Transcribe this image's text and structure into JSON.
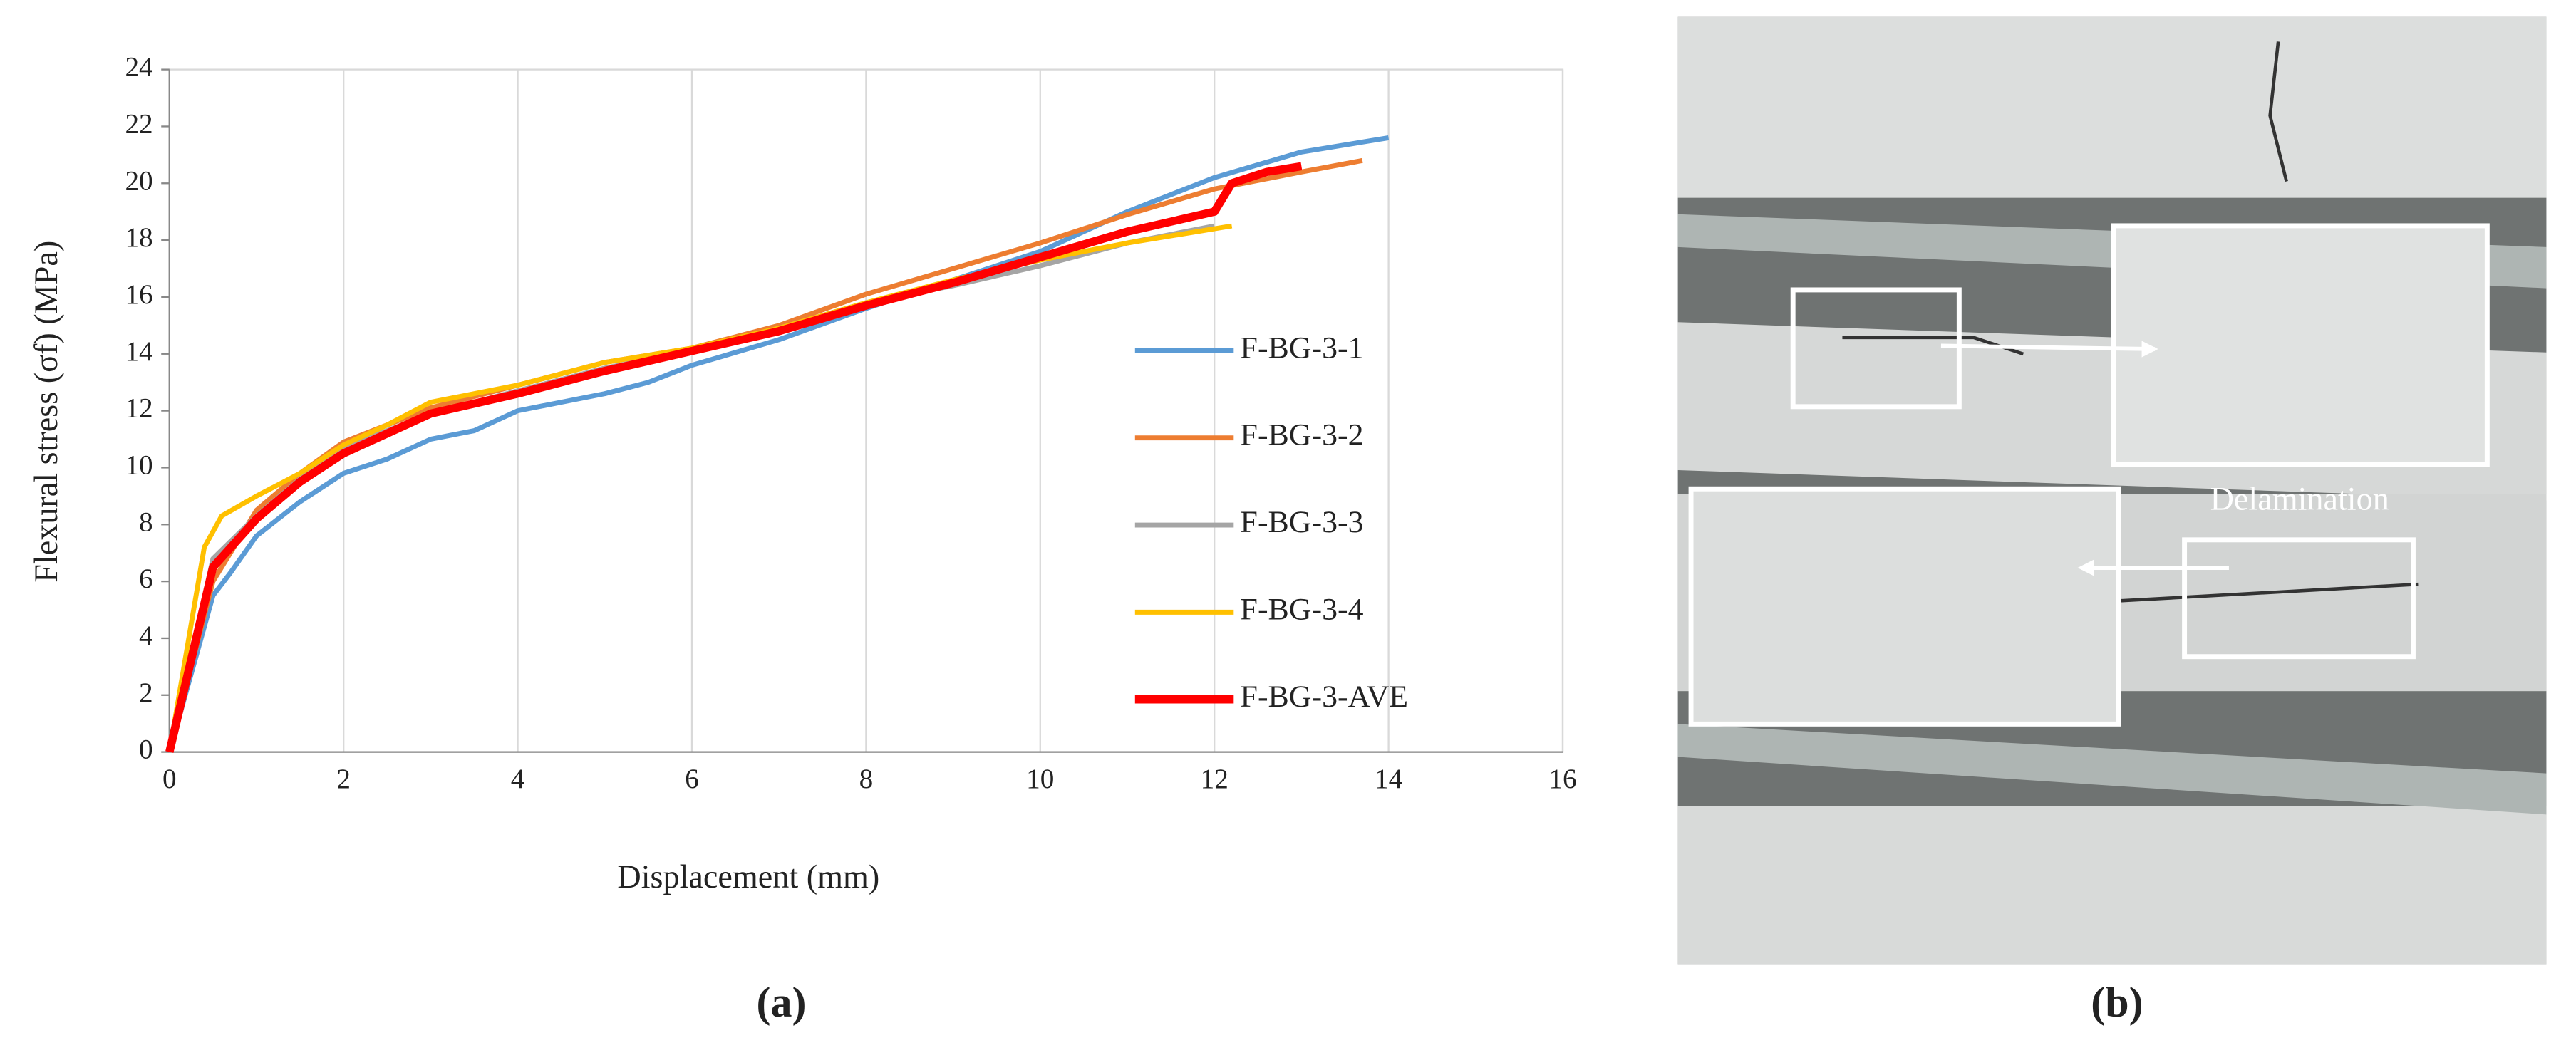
{
  "chart_data": {
    "type": "line",
    "x_label": "Displacement (mm)",
    "y_label": "Flexural stress (σf) (MPa)",
    "xlim": [
      0,
      16
    ],
    "xticks": [
      0,
      2,
      4,
      6,
      8,
      10,
      12,
      14,
      16
    ],
    "ylim": [
      0,
      24
    ],
    "yticks": [
      0,
      2,
      4,
      6,
      8,
      10,
      12,
      14,
      16,
      18,
      20,
      22,
      24
    ],
    "grid": "x",
    "legend": "right",
    "series": [
      {
        "name": "F-BG-3-1",
        "color": "#5b9bd5",
        "width": 3,
        "x": [
          0,
          0.5,
          0.7,
          1,
          1.5,
          2,
          2.5,
          3,
          3.5,
          4,
          4.5,
          5,
          5.5,
          6,
          7,
          8,
          9,
          10,
          11,
          12,
          13,
          14
        ],
        "values": [
          0,
          5.5,
          6.3,
          7.6,
          8.8,
          9.8,
          10.3,
          11.0,
          11.3,
          12.0,
          12.3,
          12.6,
          13.0,
          13.6,
          14.5,
          15.6,
          16.6,
          17.6,
          19.0,
          20.2,
          21.1,
          21.6
        ]
      },
      {
        "name": "F-BG-3-2",
        "color": "#ed7d31",
        "width": 3,
        "x": [
          0,
          0.5,
          1,
          1.5,
          2,
          3,
          4,
          5,
          6,
          7,
          8,
          9,
          10,
          11,
          12,
          13,
          13.7
        ],
        "values": [
          0,
          6,
          8.5,
          9.8,
          10.9,
          12.1,
          12.9,
          13.7,
          14.2,
          15.0,
          16.1,
          17.0,
          17.9,
          18.9,
          19.8,
          20.4,
          20.8
        ]
      },
      {
        "name": "F-BG-3-3",
        "color": "#a5a5a5",
        "width": 3,
        "x": [
          0,
          0.5,
          1,
          1.5,
          2,
          3,
          4,
          5,
          6,
          7,
          8,
          9,
          10,
          11,
          12
        ],
        "values": [
          0,
          6.8,
          8.3,
          9.6,
          10.7,
          11.9,
          12.7,
          13.5,
          14.1,
          14.9,
          15.8,
          16.4,
          17.1,
          17.9,
          18.5
        ]
      },
      {
        "name": "F-BG-3-4",
        "color": "#ffc000",
        "width": 3,
        "x": [
          0,
          0.4,
          0.6,
          1,
          1.5,
          2,
          2.5,
          3,
          4,
          5,
          6,
          7,
          8,
          9,
          10,
          11,
          12.2
        ],
        "values": [
          0,
          7.2,
          8.3,
          9.0,
          9.8,
          10.8,
          11.5,
          12.3,
          12.9,
          13.7,
          14.2,
          14.9,
          15.8,
          16.6,
          17.3,
          17.9,
          18.5
        ]
      },
      {
        "name": "F-BG-3-AVE",
        "color": "#ff0000",
        "width": 5,
        "x": [
          0,
          0.5,
          1,
          1.5,
          2,
          3,
          4,
          5,
          6,
          7,
          8,
          9,
          10,
          11,
          12,
          12.2,
          12.6,
          13
        ],
        "values": [
          0,
          6.5,
          8.2,
          9.5,
          10.5,
          11.9,
          12.6,
          13.4,
          14.1,
          14.8,
          15.7,
          16.5,
          17.4,
          18.3,
          19.0,
          20.0,
          20.4,
          20.6
        ]
      }
    ]
  },
  "panel_labels": [
    "(a)",
    "(b)"
  ],
  "photo": {
    "annotation": "Delamination"
  }
}
